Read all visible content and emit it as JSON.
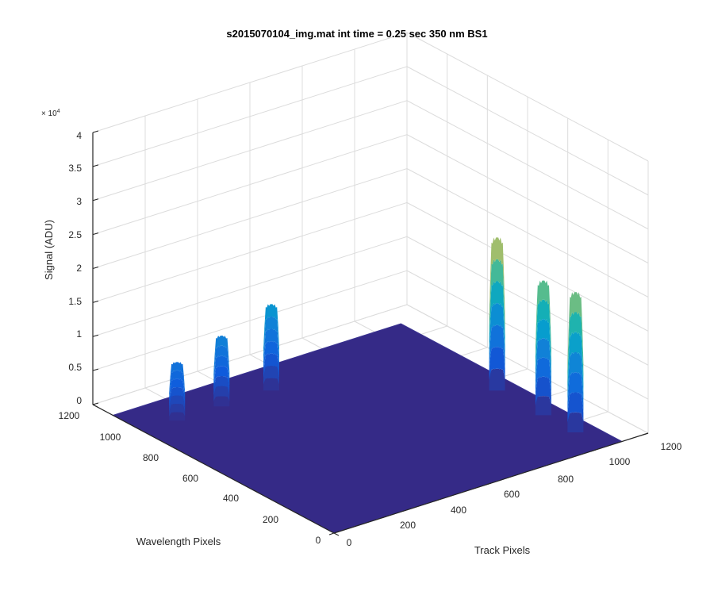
{
  "chart_data": {
    "type": "surface",
    "title": "s2015070104_img.mat int time = 0.25 sec  350 nm BS1",
    "xlabel": "Track Pixels",
    "ylabel": "Wavelength Pixels",
    "zlabel": "Signal (ADU)",
    "z_exponent_label": "× 10",
    "z_exponent_power": "4",
    "xlim": [
      0,
      1200
    ],
    "ylim": [
      0,
      1200
    ],
    "zlim": [
      0,
      40000
    ],
    "x_ticks": [
      "0",
      "200",
      "400",
      "600",
      "800",
      "1000",
      "1200"
    ],
    "y_ticks": [
      "0",
      "200",
      "400",
      "600",
      "800",
      "1000",
      "1200"
    ],
    "z_ticks": [
      "0",
      "0.5",
      "1",
      "1.5",
      "2",
      "2.5",
      "3",
      "3.5",
      "4"
    ],
    "z_tick_values": [
      0,
      5000,
      10000,
      15000,
      20000,
      25000,
      30000,
      35000,
      40000
    ],
    "grid": true,
    "colormap": "parula",
    "data_extent": {
      "x": [
        0,
        1100
      ],
      "y": [
        0,
        1100
      ]
    },
    "peaks": [
      {
        "x": 130,
        "y": 950,
        "peak": 8600,
        "width": 10
      },
      {
        "x": 300,
        "y": 950,
        "peak": 10400,
        "width": 10
      },
      {
        "x": 490,
        "y": 950,
        "peak": 12700,
        "width": 10
      },
      {
        "x": 1030,
        "y": 530,
        "peak": 22500,
        "width": 10
      },
      {
        "x": 1030,
        "y": 300,
        "peak": 19800,
        "width": 10
      },
      {
        "x": 1030,
        "y": 140,
        "peak": 20600,
        "width": 10
      }
    ],
    "baseline": 0
  }
}
